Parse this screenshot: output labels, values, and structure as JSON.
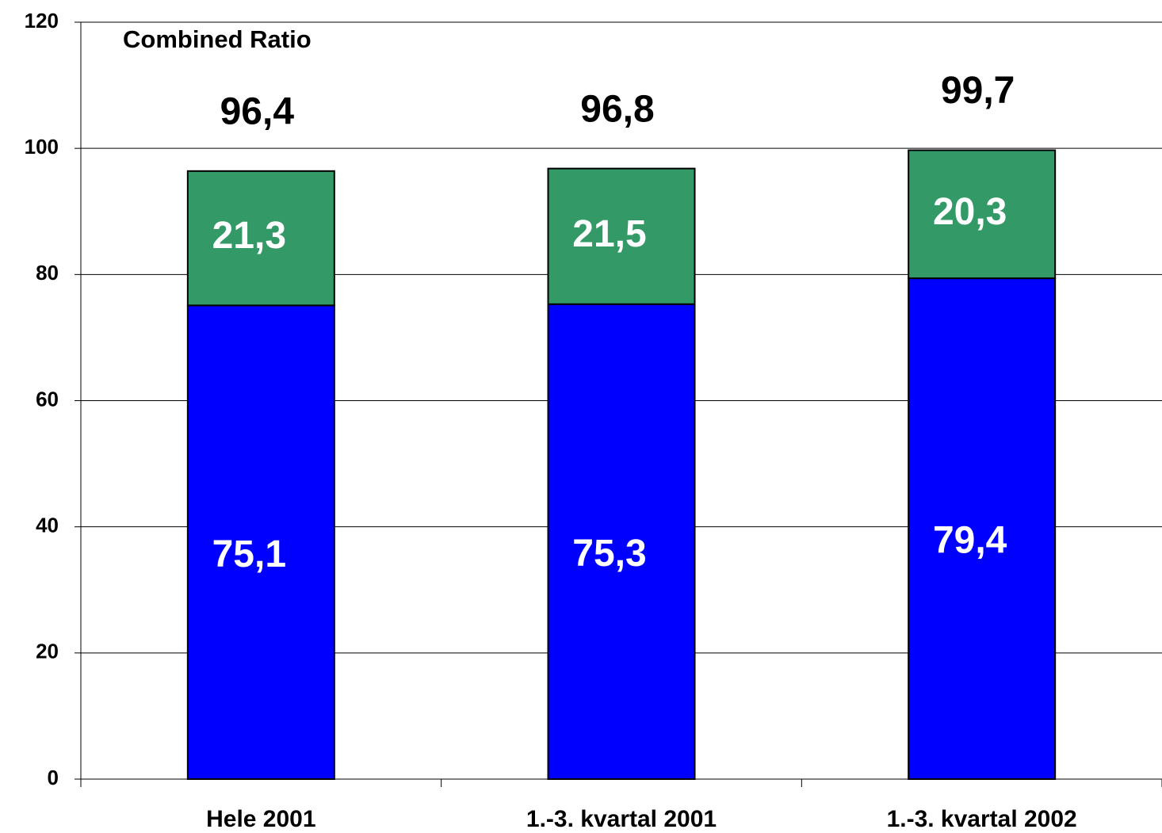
{
  "chart_data": {
    "type": "stacked_bar",
    "title": "Combined Ratio",
    "categories": [
      "Hele 2001",
      "1.-3. kvartal 2001",
      "1.-3. kvartal 2002"
    ],
    "series": [
      {
        "color": "#0000ff",
        "values": [
          75.1,
          75.3,
          79.4
        ],
        "value_labels": [
          "75,1",
          "75,3",
          "79,4"
        ]
      },
      {
        "color": "#339966",
        "values": [
          21.3,
          21.5,
          20.3
        ],
        "value_labels": [
          "21,3",
          "21,5",
          "20,3"
        ]
      }
    ],
    "totals": [
      96.4,
      96.8,
      99.7
    ],
    "total_labels": [
      "96,4",
      "96,8",
      "99,7"
    ],
    "ylim": [
      0,
      120
    ],
    "yticks": [
      0,
      20,
      40,
      60,
      80,
      100,
      120
    ],
    "grid": true
  }
}
